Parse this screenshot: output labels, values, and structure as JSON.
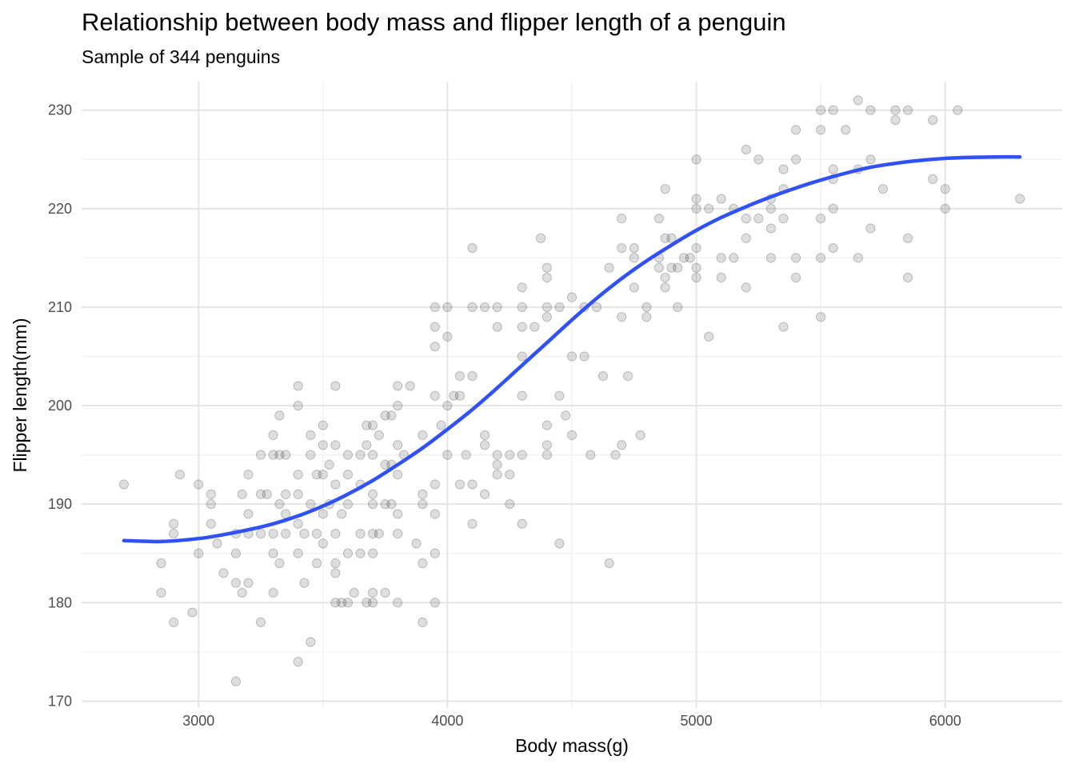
{
  "chart_data": {
    "type": "scatter",
    "title": "Relationship between body mass and flipper length of a penguin",
    "subtitle": "Sample of 344 penguins",
    "xlabel": "Body mass(g)",
    "ylabel": "Flipper length(mm)",
    "xlim": [
      2530,
      6470
    ],
    "ylim": [
      169.3,
      232.9
    ],
    "x_ticks": [
      3000,
      4000,
      5000,
      6000
    ],
    "y_ticks": [
      170,
      180,
      190,
      200,
      210,
      220,
      230
    ],
    "grid": true,
    "series": [
      {
        "type": "scatter",
        "points": [
          [
            2700,
            192
          ],
          [
            2850,
            181
          ],
          [
            2850,
            184
          ],
          [
            2900,
            178
          ],
          [
            2900,
            187
          ],
          [
            2900,
            188
          ],
          [
            2925,
            193
          ],
          [
            2975,
            179
          ],
          [
            3000,
            185
          ],
          [
            3000,
            192
          ],
          [
            3050,
            188
          ],
          [
            3050,
            190
          ],
          [
            3050,
            191
          ],
          [
            3075,
            186
          ],
          [
            3100,
            183
          ],
          [
            3150,
            172
          ],
          [
            3150,
            182
          ],
          [
            3150,
            185
          ],
          [
            3150,
            187
          ],
          [
            3175,
            181
          ],
          [
            3175,
            191
          ],
          [
            3200,
            182
          ],
          [
            3200,
            187
          ],
          [
            3200,
            189
          ],
          [
            3200,
            193
          ],
          [
            3250,
            178
          ],
          [
            3250,
            187
          ],
          [
            3250,
            191
          ],
          [
            3250,
            195
          ],
          [
            3275,
            191
          ],
          [
            3300,
            181
          ],
          [
            3300,
            185
          ],
          [
            3300,
            187
          ],
          [
            3300,
            195
          ],
          [
            3300,
            197
          ],
          [
            3325,
            184
          ],
          [
            3325,
            190
          ],
          [
            3325,
            195
          ],
          [
            3325,
            199
          ],
          [
            3350,
            187
          ],
          [
            3350,
            189
          ],
          [
            3350,
            191
          ],
          [
            3350,
            195
          ],
          [
            3400,
            174
          ],
          [
            3400,
            185
          ],
          [
            3400,
            188
          ],
          [
            3400,
            191
          ],
          [
            3400,
            193
          ],
          [
            3400,
            200
          ],
          [
            3400,
            202
          ],
          [
            3425,
            182
          ],
          [
            3425,
            187
          ],
          [
            3450,
            176
          ],
          [
            3450,
            190
          ],
          [
            3450,
            195
          ],
          [
            3450,
            197
          ],
          [
            3475,
            184
          ],
          [
            3475,
            187
          ],
          [
            3475,
            193
          ],
          [
            3500,
            186
          ],
          [
            3500,
            189
          ],
          [
            3500,
            193
          ],
          [
            3500,
            196
          ],
          [
            3500,
            198
          ],
          [
            3525,
            190
          ],
          [
            3525,
            194
          ],
          [
            3550,
            180
          ],
          [
            3550,
            183
          ],
          [
            3550,
            184
          ],
          [
            3550,
            187
          ],
          [
            3550,
            192
          ],
          [
            3550,
            196
          ],
          [
            3550,
            202
          ],
          [
            3575,
            180
          ],
          [
            3575,
            189
          ],
          [
            3600,
            180
          ],
          [
            3600,
            185
          ],
          [
            3600,
            190
          ],
          [
            3600,
            193
          ],
          [
            3600,
            195
          ],
          [
            3625,
            181
          ],
          [
            3650,
            185
          ],
          [
            3650,
            187
          ],
          [
            3650,
            192
          ],
          [
            3650,
            195
          ],
          [
            3675,
            180
          ],
          [
            3675,
            196
          ],
          [
            3675,
            198
          ],
          [
            3700,
            180
          ],
          [
            3700,
            181
          ],
          [
            3700,
            185
          ],
          [
            3700,
            187
          ],
          [
            3700,
            190
          ],
          [
            3700,
            191
          ],
          [
            3700,
            195
          ],
          [
            3700,
            198
          ],
          [
            3725,
            187
          ],
          [
            3725,
            197
          ],
          [
            3750,
            181
          ],
          [
            3750,
            190
          ],
          [
            3750,
            194
          ],
          [
            3750,
            199
          ],
          [
            3775,
            190
          ],
          [
            3775,
            194
          ],
          [
            3775,
            199
          ],
          [
            3800,
            180
          ],
          [
            3800,
            187
          ],
          [
            3800,
            189
          ],
          [
            3800,
            193
          ],
          [
            3800,
            196
          ],
          [
            3800,
            200
          ],
          [
            3800,
            202
          ],
          [
            3825,
            195
          ],
          [
            3850,
            202
          ],
          [
            3875,
            186
          ],
          [
            3900,
            178
          ],
          [
            3900,
            184
          ],
          [
            3900,
            190
          ],
          [
            3900,
            191
          ],
          [
            3900,
            197
          ],
          [
            3950,
            180
          ],
          [
            3950,
            185
          ],
          [
            3950,
            189
          ],
          [
            3950,
            192
          ],
          [
            3950,
            201
          ],
          [
            3950,
            206
          ],
          [
            3950,
            208
          ],
          [
            3950,
            210
          ],
          [
            3975,
            198
          ],
          [
            4000,
            195
          ],
          [
            4000,
            200
          ],
          [
            4000,
            207
          ],
          [
            4000,
            210
          ],
          [
            4025,
            201
          ],
          [
            4050,
            192
          ],
          [
            4050,
            201
          ],
          [
            4050,
            203
          ],
          [
            4075,
            195
          ],
          [
            4100,
            188
          ],
          [
            4100,
            192
          ],
          [
            4100,
            203
          ],
          [
            4100,
            210
          ],
          [
            4100,
            216
          ],
          [
            4150,
            191
          ],
          [
            4150,
            196
          ],
          [
            4150,
            197
          ],
          [
            4150,
            210
          ],
          [
            4200,
            193
          ],
          [
            4200,
            194
          ],
          [
            4200,
            195
          ],
          [
            4200,
            208
          ],
          [
            4200,
            210
          ],
          [
            4250,
            190
          ],
          [
            4250,
            193
          ],
          [
            4250,
            195
          ],
          [
            4300,
            188
          ],
          [
            4300,
            195
          ],
          [
            4300,
            201
          ],
          [
            4300,
            205
          ],
          [
            4300,
            208
          ],
          [
            4300,
            210
          ],
          [
            4300,
            212
          ],
          [
            4350,
            208
          ],
          [
            4375,
            217
          ],
          [
            4400,
            195
          ],
          [
            4400,
            196
          ],
          [
            4400,
            198
          ],
          [
            4400,
            209
          ],
          [
            4400,
            210
          ],
          [
            4400,
            213
          ],
          [
            4400,
            214
          ],
          [
            4450,
            186
          ],
          [
            4450,
            201
          ],
          [
            4450,
            210
          ],
          [
            4475,
            199
          ],
          [
            4500,
            197
          ],
          [
            4500,
            205
          ],
          [
            4500,
            211
          ],
          [
            4550,
            205
          ],
          [
            4550,
            210
          ],
          [
            4575,
            195
          ],
          [
            4600,
            210
          ],
          [
            4625,
            203
          ],
          [
            4650,
            184
          ],
          [
            4650,
            214
          ],
          [
            4675,
            195
          ],
          [
            4700,
            196
          ],
          [
            4700,
            209
          ],
          [
            4700,
            216
          ],
          [
            4700,
            219
          ],
          [
            4725,
            203
          ],
          [
            4750,
            212
          ],
          [
            4750,
            215
          ],
          [
            4750,
            216
          ],
          [
            4775,
            197
          ],
          [
            4800,
            209
          ],
          [
            4800,
            210
          ],
          [
            4850,
            214
          ],
          [
            4850,
            215
          ],
          [
            4850,
            219
          ],
          [
            4875,
            212
          ],
          [
            4875,
            213
          ],
          [
            4875,
            217
          ],
          [
            4875,
            222
          ],
          [
            4900,
            214
          ],
          [
            4900,
            217
          ],
          [
            4925,
            210
          ],
          [
            4925,
            214
          ],
          [
            4950,
            215
          ],
          [
            4975,
            215
          ],
          [
            5000,
            213
          ],
          [
            5000,
            214
          ],
          [
            5000,
            216
          ],
          [
            5000,
            220
          ],
          [
            5000,
            221
          ],
          [
            5000,
            225
          ],
          [
            5050,
            207
          ],
          [
            5050,
            220
          ],
          [
            5100,
            213
          ],
          [
            5100,
            215
          ],
          [
            5100,
            221
          ],
          [
            5150,
            215
          ],
          [
            5150,
            220
          ],
          [
            5200,
            212
          ],
          [
            5200,
            217
          ],
          [
            5200,
            219
          ],
          [
            5200,
            226
          ],
          [
            5250,
            219
          ],
          [
            5250,
            225
          ],
          [
            5300,
            215
          ],
          [
            5300,
            218
          ],
          [
            5300,
            220
          ],
          [
            5300,
            221
          ],
          [
            5350,
            208
          ],
          [
            5350,
            219
          ],
          [
            5350,
            222
          ],
          [
            5350,
            224
          ],
          [
            5400,
            213
          ],
          [
            5400,
            215
          ],
          [
            5400,
            225
          ],
          [
            5400,
            228
          ],
          [
            5500,
            209
          ],
          [
            5500,
            215
          ],
          [
            5500,
            219
          ],
          [
            5500,
            228
          ],
          [
            5500,
            230
          ],
          [
            5550,
            216
          ],
          [
            5550,
            220
          ],
          [
            5550,
            223
          ],
          [
            5550,
            224
          ],
          [
            5550,
            230
          ],
          [
            5600,
            228
          ],
          [
            5650,
            215
          ],
          [
            5650,
            224
          ],
          [
            5650,
            231
          ],
          [
            5700,
            218
          ],
          [
            5700,
            225
          ],
          [
            5700,
            230
          ],
          [
            5750,
            222
          ],
          [
            5800,
            229
          ],
          [
            5800,
            230
          ],
          [
            5850,
            213
          ],
          [
            5850,
            217
          ],
          [
            5850,
            230
          ],
          [
            5950,
            223
          ],
          [
            5950,
            229
          ],
          [
            6000,
            220
          ],
          [
            6000,
            222
          ],
          [
            6050,
            230
          ],
          [
            6300,
            221
          ]
        ]
      },
      {
        "type": "line",
        "color": "#3050f8",
        "points": [
          [
            2700,
            186.3
          ],
          [
            2850,
            186.2
          ],
          [
            3000,
            186.5
          ],
          [
            3100,
            186.9
          ],
          [
            3200,
            187.4
          ],
          [
            3300,
            188.0
          ],
          [
            3400,
            188.8
          ],
          [
            3500,
            189.8
          ],
          [
            3600,
            191.0
          ],
          [
            3700,
            192.4
          ],
          [
            3800,
            194.0
          ],
          [
            3900,
            195.7
          ],
          [
            4000,
            197.6
          ],
          [
            4100,
            199.6
          ],
          [
            4200,
            201.8
          ],
          [
            4300,
            204.1
          ],
          [
            4400,
            206.4
          ],
          [
            4500,
            208.7
          ],
          [
            4600,
            210.9
          ],
          [
            4700,
            212.9
          ],
          [
            4800,
            214.7
          ],
          [
            4900,
            216.3
          ],
          [
            5000,
            217.8
          ],
          [
            5100,
            219.1
          ],
          [
            5200,
            220.2
          ],
          [
            5300,
            221.2
          ],
          [
            5400,
            222.1
          ],
          [
            5500,
            222.9
          ],
          [
            5600,
            223.6
          ],
          [
            5700,
            224.2
          ],
          [
            5800,
            224.6
          ],
          [
            5900,
            224.9
          ],
          [
            6000,
            225.1
          ],
          [
            6100,
            225.2
          ],
          [
            6200,
            225.25
          ],
          [
            6300,
            225.25
          ]
        ]
      }
    ]
  }
}
